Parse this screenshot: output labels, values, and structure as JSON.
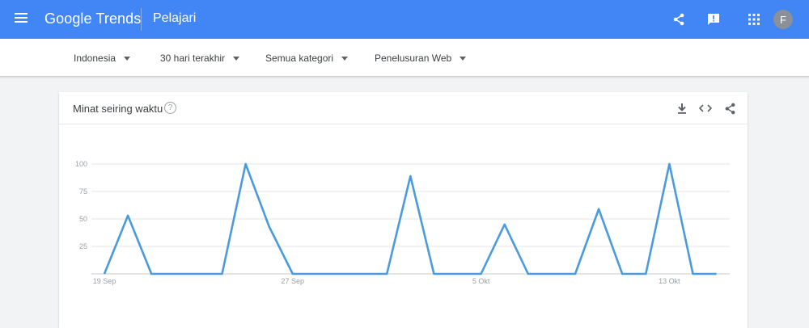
{
  "header": {
    "logo_text": "Google Trends",
    "page_title": "Pelajari",
    "avatar_letter": "F",
    "bg_color": "#4285f4"
  },
  "filters": {
    "region": "Indonesia",
    "time": "30 hari terakhir",
    "category": "Semua kategori",
    "search_type": "Penelusuran Web"
  },
  "card": {
    "title": "Minat seiring waktu",
    "help_icon": "?"
  },
  "icons": [
    "menu-icon",
    "share-icon",
    "feedback-icon",
    "apps-icon",
    "help-icon",
    "download-icon",
    "embed-icon",
    "share-icon"
  ],
  "chart_data": {
    "type": "line",
    "title": "",
    "xlabel": "",
    "ylabel": "",
    "ylim": [
      0,
      100
    ],
    "yticks": [
      25,
      50,
      75,
      100
    ],
    "xtick_labels": [
      "19 Sep",
      "27 Sep",
      "5 Okt",
      "13 Okt"
    ],
    "xtick_index": [
      0,
      8,
      16,
      24
    ],
    "grid": true,
    "color": "#4a9ae0",
    "series": [
      {
        "values": [
          0,
          53,
          0,
          0,
          0,
          0,
          100,
          43,
          0,
          0,
          0,
          0,
          0,
          89,
          0,
          0,
          0,
          45,
          0,
          0,
          0,
          59,
          0,
          0,
          100,
          0,
          0
        ]
      }
    ]
  }
}
